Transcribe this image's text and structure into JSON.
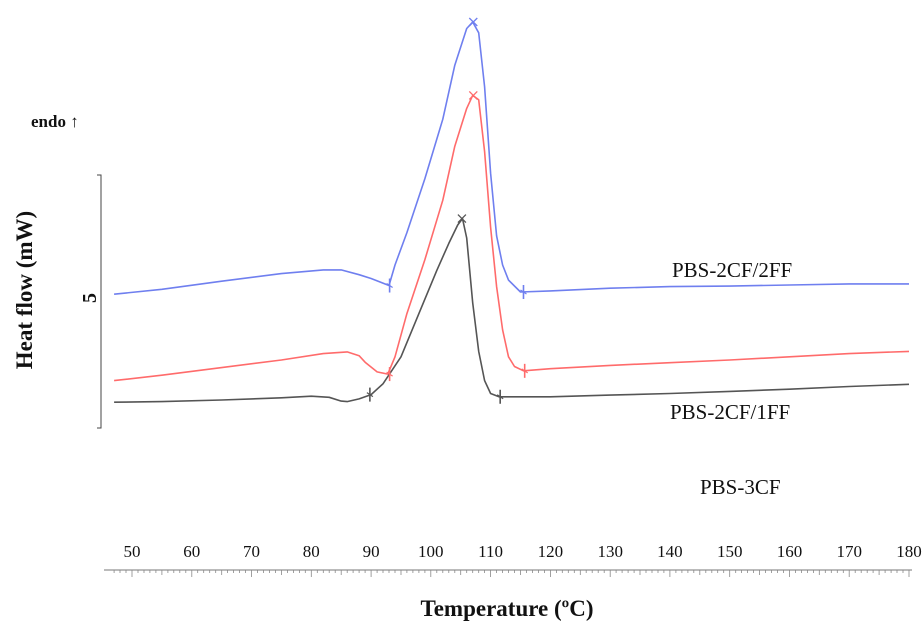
{
  "chart_data": {
    "type": "line",
    "title": "",
    "xlabel": "Temperature (ºC)",
    "ylabel": "Heat flow (mW)",
    "endo_label": "endo ↑",
    "scale_bar_label": "5",
    "xlim": [
      45,
      180
    ],
    "x_ticks": [
      50,
      60,
      70,
      80,
      90,
      100,
      110,
      120,
      130,
      140,
      150,
      160,
      170,
      180
    ],
    "series": [
      {
        "name": "PBS-2CF/2FF",
        "color": "#6f7fef",
        "points": [
          [
            47,
            -0.2
          ],
          [
            55,
            0.25
          ],
          [
            65,
            1.0
          ],
          [
            75,
            1.7
          ],
          [
            82,
            2.05
          ],
          [
            85,
            2.05
          ],
          [
            88,
            1.6
          ],
          [
            90,
            1.25
          ],
          [
            93,
            0.6
          ],
          [
            94,
            2.5
          ],
          [
            96,
            5.5
          ],
          [
            99,
            10.5
          ],
          [
            102,
            16.0
          ],
          [
            104,
            21.0
          ],
          [
            106,
            24.4
          ],
          [
            107,
            25.0
          ],
          [
            108,
            24.0
          ],
          [
            109,
            19.0
          ],
          [
            110,
            11.0
          ],
          [
            111,
            5.2
          ],
          [
            112,
            2.5
          ],
          [
            113,
            1.1
          ],
          [
            115,
            0
          ],
          [
            120,
            0.1
          ],
          [
            130,
            0.35
          ],
          [
            140,
            0.5
          ],
          [
            150,
            0.55
          ],
          [
            160,
            0.65
          ],
          [
            170,
            0.75
          ],
          [
            180,
            0.75
          ]
        ],
        "markers": [
          [
            93.1,
            0.6
          ],
          [
            115.5,
            0.0
          ],
          [
            107.1,
            25.0
          ]
        ]
      },
      {
        "name": "PBS-2CF/1FF",
        "color": "#ff6b6b",
        "points": [
          [
            47,
            -8.2
          ],
          [
            55,
            -7.7
          ],
          [
            65,
            -7.0
          ],
          [
            75,
            -6.3
          ],
          [
            82,
            -5.7
          ],
          [
            86,
            -5.55
          ],
          [
            88,
            -5.9
          ],
          [
            89,
            -6.5
          ],
          [
            91,
            -7.4
          ],
          [
            92.8,
            -7.6
          ],
          [
            94,
            -6.0
          ],
          [
            96,
            -2.0
          ],
          [
            99,
            3.0
          ],
          [
            102,
            8.5
          ],
          [
            104,
            13.5
          ],
          [
            106,
            17.0
          ],
          [
            107,
            18.2
          ],
          [
            108,
            17.8
          ],
          [
            109,
            13.0
          ],
          [
            110,
            6.0
          ],
          [
            111,
            0.5
          ],
          [
            112,
            -3.5
          ],
          [
            113,
            -6.0
          ],
          [
            114,
            -6.9
          ],
          [
            115.5,
            -7.3
          ],
          [
            120,
            -7.1
          ],
          [
            130,
            -6.8
          ],
          [
            140,
            -6.55
          ],
          [
            150,
            -6.3
          ],
          [
            160,
            -6.0
          ],
          [
            170,
            -5.7
          ],
          [
            180,
            -5.5
          ]
        ],
        "markers": [
          [
            93.1,
            -7.6
          ],
          [
            115.7,
            -7.3
          ],
          [
            107.1,
            18.2
          ]
        ]
      },
      {
        "name": "PBS-3CF",
        "color": "#555555",
        "points": [
          [
            47,
            -10.2
          ],
          [
            55,
            -10.15
          ],
          [
            65,
            -10.0
          ],
          [
            75,
            -9.8
          ],
          [
            80,
            -9.65
          ],
          [
            83,
            -9.75
          ],
          [
            85,
            -10.1
          ],
          [
            86,
            -10.15
          ],
          [
            88,
            -9.9
          ],
          [
            90,
            -9.5
          ],
          [
            92,
            -8.5
          ],
          [
            95,
            -6.0
          ],
          [
            98,
            -2.0
          ],
          [
            101,
            2.0
          ],
          [
            103,
            4.5
          ],
          [
            104.5,
            6.2
          ],
          [
            105.3,
            6.8
          ],
          [
            106,
            5.0
          ],
          [
            107,
            -1.0
          ],
          [
            108,
            -5.5
          ],
          [
            109,
            -8.2
          ],
          [
            110,
            -9.4
          ],
          [
            111.4,
            -9.7
          ],
          [
            120,
            -9.7
          ],
          [
            130,
            -9.55
          ],
          [
            140,
            -9.4
          ],
          [
            150,
            -9.2
          ],
          [
            160,
            -9.0
          ],
          [
            170,
            -8.75
          ],
          [
            180,
            -8.55
          ]
        ],
        "markers": [
          [
            89.8,
            -9.5
          ],
          [
            111.6,
            -9.7
          ],
          [
            105.2,
            6.8
          ]
        ]
      }
    ]
  }
}
